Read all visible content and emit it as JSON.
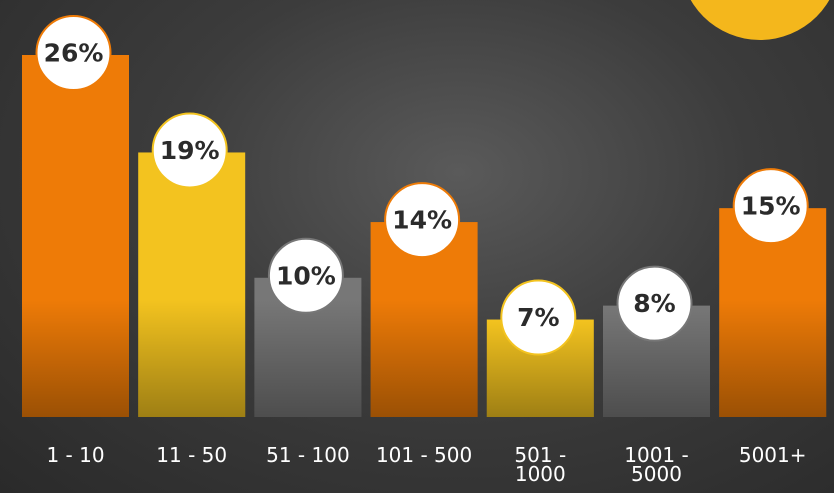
{
  "chart_data": {
    "type": "bar",
    "categories": [
      "1 - 10",
      "11 - 50",
      "51 - 100",
      "101 - 500",
      "501 -\n1000",
      "1001 -\n5000",
      "5001+"
    ],
    "values": [
      26,
      19,
      10,
      14,
      7,
      8,
      15
    ],
    "value_labels": [
      "26%",
      "19%",
      "10%",
      "14%",
      "7%",
      "8%",
      "15%"
    ],
    "colors": [
      "#ee7b07",
      "#f3c31f",
      "#777777",
      "#ee7b07",
      "#f3c31f",
      "#777777",
      "#ee7b07"
    ]
  }
}
